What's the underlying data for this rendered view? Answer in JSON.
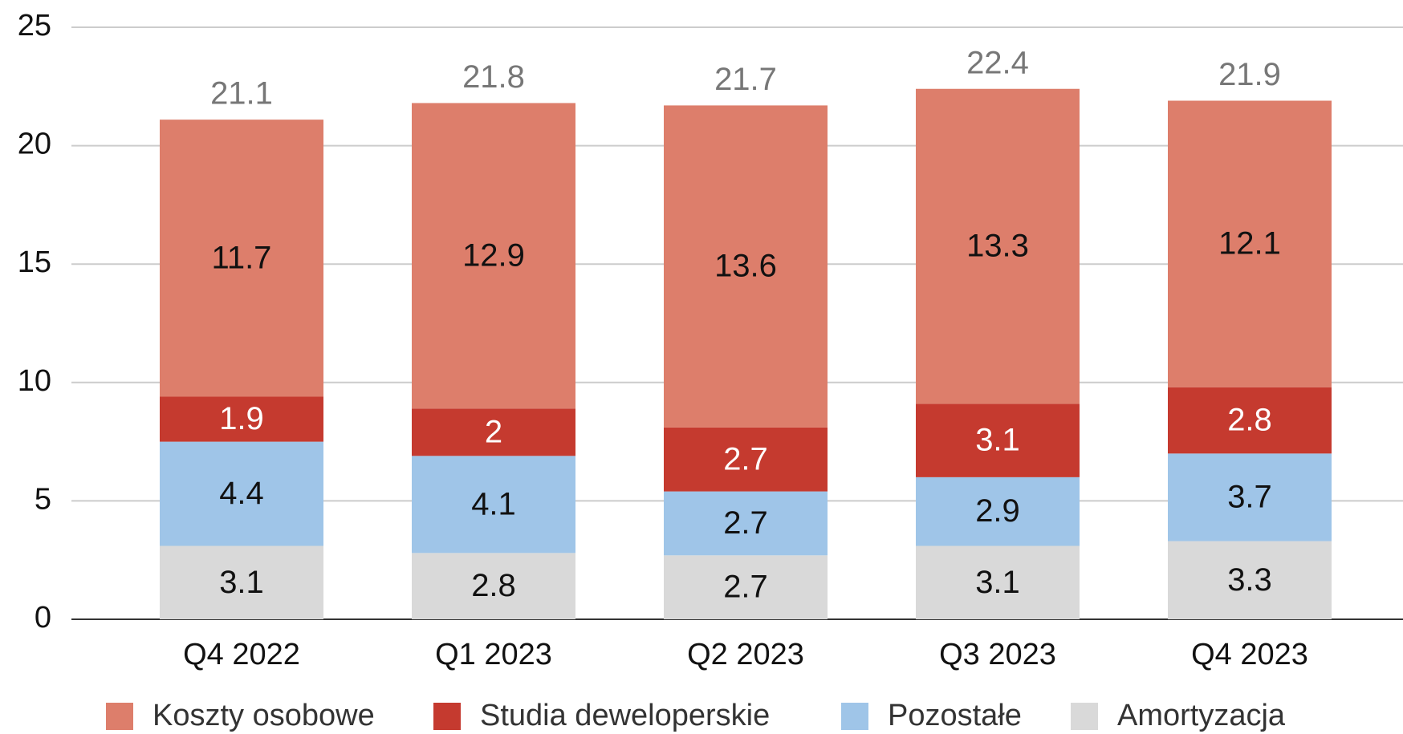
{
  "chart_data": {
    "type": "stacked_bar",
    "categories": [
      "Q4 2022",
      "Q1 2023",
      "Q2 2023",
      "Q3 2023",
      "Q4 2023"
    ],
    "series": [
      {
        "name": "Koszty osobowe",
        "color": "#dd7e6b",
        "values": [
          11.7,
          12.9,
          13.6,
          13.3,
          12.1
        ]
      },
      {
        "name": "Studia deweloperskie",
        "color": "#c53a2f",
        "values": [
          1.9,
          2,
          2.7,
          3.1,
          2.8
        ]
      },
      {
        "name": "Pozostałe",
        "color": "#9fc5e8",
        "values": [
          4.4,
          4.1,
          2.7,
          2.9,
          3.7
        ]
      },
      {
        "name": "Amortyzacja",
        "color": "#d9d9d9",
        "values": [
          3.1,
          2.8,
          2.7,
          3.1,
          3.3
        ]
      }
    ],
    "totals": [
      21.1,
      21.8,
      21.7,
      22.4,
      21.9
    ],
    "ylim": [
      0,
      25
    ],
    "yticks": [
      0,
      5,
      10,
      15,
      20,
      25
    ],
    "grid": true,
    "legend": "bottom"
  }
}
